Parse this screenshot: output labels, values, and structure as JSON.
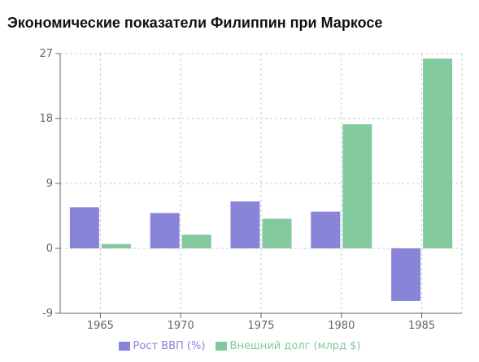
{
  "title": "Экономические показатели Филиппин при Маркосе",
  "colors": {
    "gdp": "#8884d8",
    "debt": "#82ca9d",
    "grid": "#cccccc",
    "axis": "#666666"
  },
  "chart_data": {
    "type": "bar",
    "categories": [
      "1965",
      "1970",
      "1975",
      "1980",
      "1985"
    ],
    "series": [
      {
        "name": "Рост ВВП (%)",
        "values": [
          5.7,
          4.9,
          6.5,
          5.1,
          -7.3
        ]
      },
      {
        "name": "Внешний долг (млрд $)",
        "values": [
          0.6,
          1.9,
          4.1,
          17.2,
          26.3
        ]
      }
    ],
    "yticks": [
      "-9",
      "0",
      "9",
      "18",
      "27"
    ],
    "ylim": [
      -9,
      27
    ],
    "grid": true,
    "legend": "bottom"
  }
}
